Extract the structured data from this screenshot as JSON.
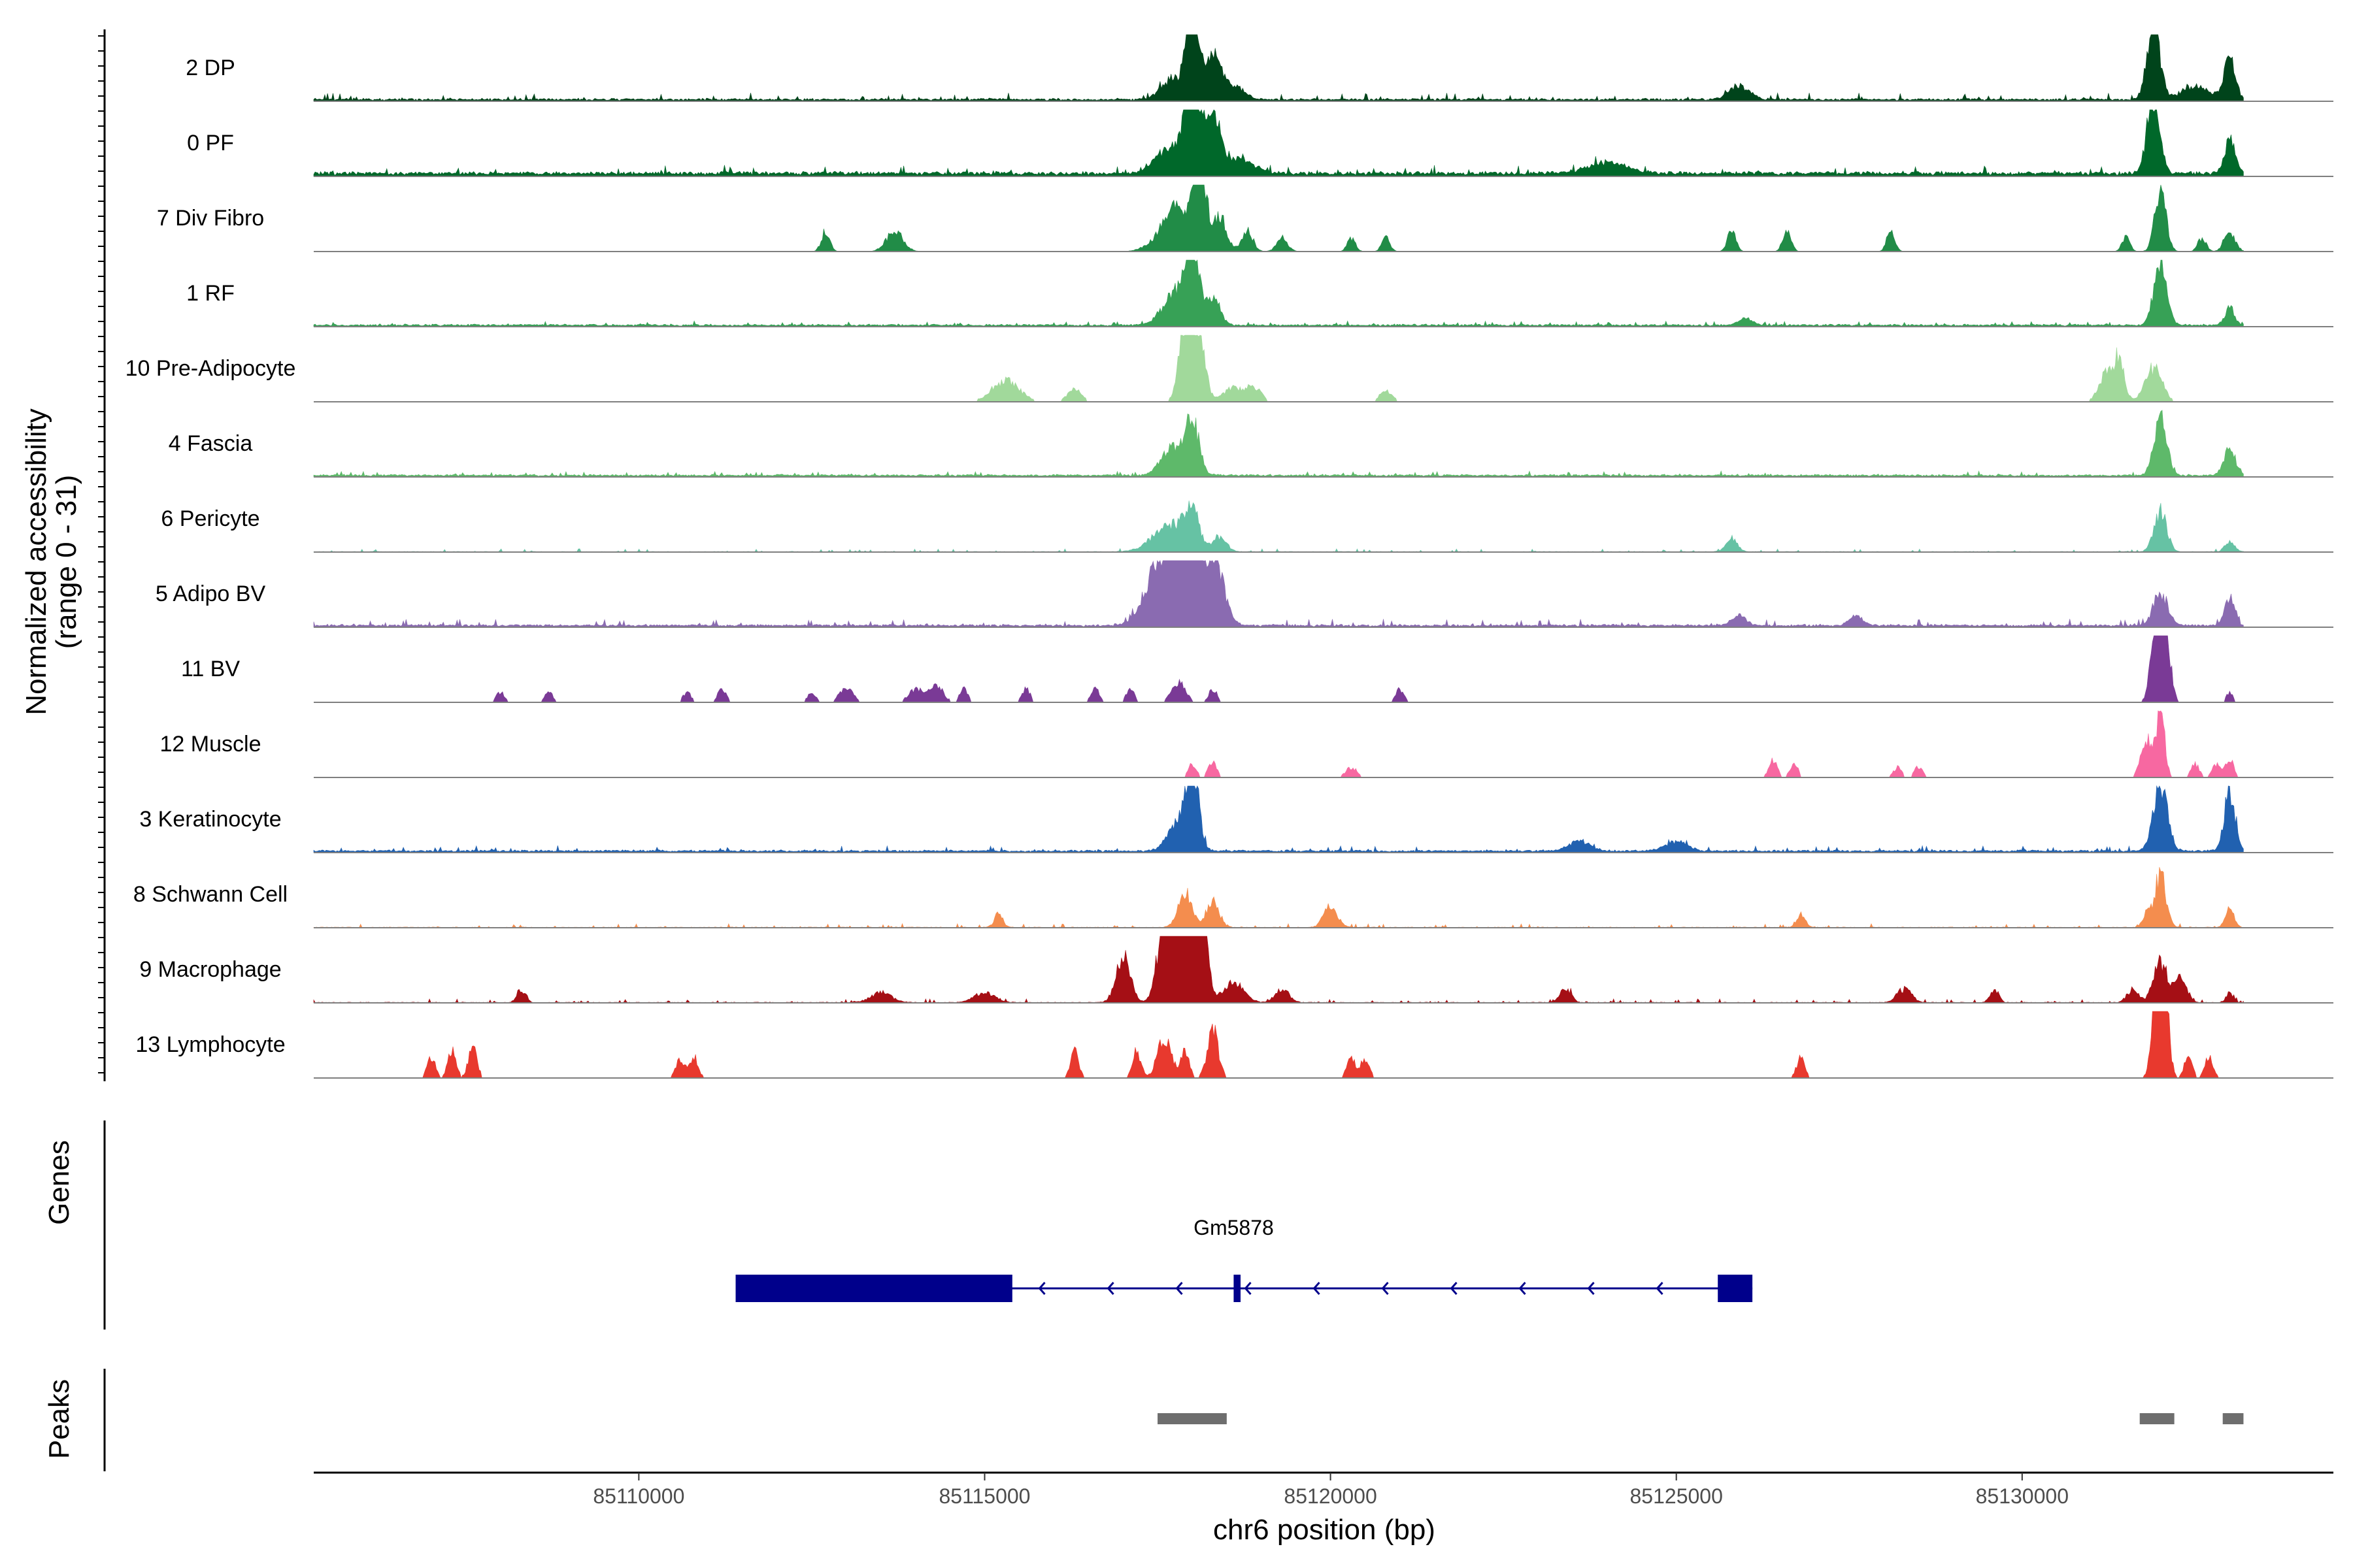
{
  "chart_data": {
    "type": "area",
    "title": "",
    "chromosome": "chr6",
    "xlabel": "chr6 position (bp)",
    "xlim": [
      85105300,
      85134500
    ],
    "x_ticks": [
      85110000,
      85115000,
      85120000,
      85125000,
      85130000
    ],
    "x_tick_labels": [
      "85110000",
      "85115000",
      "85120000",
      "85125000",
      "85130000"
    ],
    "ylabel_line1": "Normalized accessibility",
    "ylabel_line2": "(range 0 - 31)",
    "ylim": [
      0,
      31
    ],
    "signal_range": [
      85105300,
      85133200
    ],
    "coverage_tracks": [
      {
        "name": "2 DP",
        "color": "#00441b",
        "baseline": 0.2,
        "noise": 0.5,
        "sparse": false,
        "peaks": [
          [
            85117700,
            150,
            3
          ],
          [
            85118000,
            90,
            13
          ],
          [
            85118300,
            110,
            7
          ],
          [
            85118600,
            150,
            2
          ],
          [
            85125900,
            150,
            2
          ],
          [
            85131900,
            90,
            12
          ],
          [
            85132500,
            200,
            2
          ],
          [
            85133000,
            80,
            6
          ]
        ]
      },
      {
        "name": "0 PF",
        "color": "#00682a",
        "baseline": 0.4,
        "noise": 0.6,
        "sparse": false,
        "peaks": [
          [
            85117700,
            200,
            4
          ],
          [
            85118000,
            100,
            14
          ],
          [
            85118300,
            110,
            9
          ],
          [
            85118700,
            200,
            2
          ],
          [
            85124000,
            300,
            1.5
          ],
          [
            85131900,
            90,
            12
          ],
          [
            85133000,
            80,
            5
          ]
        ]
      },
      {
        "name": "7 Div Fibro",
        "color": "#218c47",
        "baseline": 0,
        "noise": 0,
        "sparse": false,
        "peaks": [
          [
            85112700,
            60,
            3
          ],
          [
            85113700,
            120,
            3
          ],
          [
            85117600,
            200,
            2.5
          ],
          [
            85118100,
            90,
            16
          ],
          [
            85117800,
            150,
            5
          ],
          [
            85118400,
            100,
            5
          ],
          [
            85118800,
            80,
            3
          ],
          [
            85119300,
            80,
            2
          ],
          [
            85120300,
            60,
            2
          ],
          [
            85120800,
            60,
            2
          ],
          [
            85125800,
            60,
            3
          ],
          [
            85126600,
            60,
            3
          ],
          [
            85128100,
            60,
            3
          ],
          [
            85131500,
            60,
            2
          ],
          [
            85132000,
            80,
            9
          ],
          [
            85132600,
            60,
            2
          ],
          [
            85133000,
            80,
            3
          ]
        ]
      },
      {
        "name": "1 RF",
        "color": "#37a156",
        "baseline": 0.2,
        "noise": 0.3,
        "sparse": false,
        "peaks": [
          [
            85117800,
            200,
            5
          ],
          [
            85118000,
            90,
            10
          ],
          [
            85118300,
            100,
            4
          ],
          [
            85126000,
            100,
            1
          ],
          [
            85132000,
            90,
            10
          ],
          [
            85133000,
            70,
            2.5
          ]
        ]
      },
      {
        "name": "10 Pre-Adipocyte",
        "color": "#a1d99b",
        "baseline": 0,
        "noise": 0,
        "sparse": true,
        "peaks": [
          [
            85115300,
            200,
            3
          ],
          [
            85116300,
            100,
            2
          ],
          [
            85117900,
            90,
            12
          ],
          [
            85118100,
            90,
            9
          ],
          [
            85118600,
            150,
            2
          ],
          [
            85118900,
            100,
            2
          ],
          [
            85120800,
            100,
            1.5
          ],
          [
            85131200,
            100,
            4
          ],
          [
            85131400,
            80,
            6
          ],
          [
            85131900,
            120,
            5
          ]
        ]
      },
      {
        "name": "4 Fascia",
        "color": "#5eb96a",
        "baseline": 0.2,
        "noise": 0.35,
        "sparse": false,
        "peaks": [
          [
            85117700,
            150,
            4
          ],
          [
            85118000,
            100,
            8
          ],
          [
            85132000,
            90,
            9
          ],
          [
            85133000,
            80,
            4
          ]
        ]
      },
      {
        "name": "6 Pericyte",
        "color": "#66c2a4",
        "baseline": 0,
        "noise": 0.25,
        "sparse": false,
        "peaks": [
          [
            85117700,
            250,
            4
          ],
          [
            85118000,
            100,
            5
          ],
          [
            85118400,
            100,
            2
          ],
          [
            85125800,
            80,
            2
          ],
          [
            85132000,
            90,
            6
          ],
          [
            85133000,
            70,
            1.5
          ]
        ]
      },
      {
        "name": "5 Adipo BV",
        "color": "#8a6bb1",
        "baseline": 0.2,
        "noise": 0.5,
        "sparse": false,
        "peaks": [
          [
            85117500,
            200,
            8
          ],
          [
            85117800,
            150,
            12
          ],
          [
            85118000,
            100,
            13
          ],
          [
            85118300,
            150,
            10
          ],
          [
            85132000,
            100,
            5
          ],
          [
            85133000,
            70,
            4
          ],
          [
            85127600,
            100,
            1.5
          ],
          [
            85125900,
            100,
            1.5
          ]
        ]
      },
      {
        "name": "11 BV",
        "color": "#7a3a96",
        "baseline": 0,
        "noise": 0,
        "sparse": true,
        "peaks": [
          [
            85108000,
            60,
            1.5
          ],
          [
            85108700,
            60,
            1.5
          ],
          [
            85110700,
            60,
            1.5
          ],
          [
            85111200,
            60,
            2
          ],
          [
            85112500,
            60,
            1.5
          ],
          [
            85113000,
            100,
            2
          ],
          [
            85114000,
            100,
            2
          ],
          [
            85114300,
            100,
            2.5
          ],
          [
            85114700,
            60,
            2
          ],
          [
            85115600,
            60,
            2
          ],
          [
            85116600,
            60,
            2
          ],
          [
            85117100,
            60,
            2
          ],
          [
            85117800,
            100,
            3
          ],
          [
            85118300,
            60,
            2
          ],
          [
            85121000,
            60,
            2
          ],
          [
            85132000,
            90,
            24
          ],
          [
            85133000,
            50,
            1.5
          ]
        ]
      },
      {
        "name": "12 Muscle",
        "color": "#f768a1",
        "baseline": 0,
        "noise": 0,
        "sparse": true,
        "peaks": [
          [
            85118000,
            60,
            2
          ],
          [
            85118300,
            60,
            2.5
          ],
          [
            85120300,
            80,
            1.5
          ],
          [
            85126400,
            60,
            2.5
          ],
          [
            85126700,
            60,
            2
          ],
          [
            85128200,
            60,
            1.5
          ],
          [
            85128500,
            60,
            1.5
          ],
          [
            85131800,
            80,
            6
          ],
          [
            85132000,
            60,
            10
          ],
          [
            85132500,
            60,
            2
          ],
          [
            85132800,
            60,
            2
          ],
          [
            85133000,
            60,
            3
          ]
        ]
      },
      {
        "name": "3 Keratinocyte",
        "color": "#2161b0",
        "baseline": 0.2,
        "noise": 0.4,
        "sparse": false,
        "peaks": [
          [
            85117800,
            150,
            4
          ],
          [
            85118000,
            90,
            12
          ],
          [
            85123600,
            150,
            1.5
          ],
          [
            85125000,
            150,
            1.5
          ],
          [
            85132000,
            100,
            10
          ],
          [
            85133000,
            80,
            9
          ]
        ]
      },
      {
        "name": "8 Schwann Cell",
        "color": "#f48d4e",
        "baseline": 0,
        "noise": 0.3,
        "sparse": false,
        "peaks": [
          [
            85115200,
            60,
            2
          ],
          [
            85117900,
            100,
            5
          ],
          [
            85118300,
            90,
            4
          ],
          [
            85120000,
            100,
            3
          ],
          [
            85126800,
            60,
            2
          ],
          [
            85131800,
            60,
            2
          ],
          [
            85132000,
            80,
            8
          ],
          [
            85133000,
            60,
            3
          ]
        ]
      },
      {
        "name": "9 Macrophage",
        "color": "#a50f15",
        "baseline": 0,
        "noise": 0.3,
        "sparse": false,
        "peaks": [
          [
            85108300,
            60,
            2
          ],
          [
            85113500,
            150,
            1.5
          ],
          [
            85115000,
            150,
            1.5
          ],
          [
            85117000,
            100,
            7
          ],
          [
            85117600,
            100,
            12
          ],
          [
            85117900,
            120,
            18
          ],
          [
            85118100,
            90,
            22
          ],
          [
            85118600,
            150,
            3
          ],
          [
            85119300,
            100,
            2
          ],
          [
            85123400,
            80,
            2
          ],
          [
            85128300,
            100,
            2
          ],
          [
            85129600,
            60,
            2
          ],
          [
            85131600,
            80,
            2
          ],
          [
            85132000,
            100,
            6
          ],
          [
            85132300,
            80,
            4
          ],
          [
            85133000,
            50,
            1.5
          ]
        ]
      },
      {
        "name": "13 Lymphocyte",
        "color": "#e8392e",
        "baseline": 0,
        "noise": 0,
        "sparse": true,
        "peaks": [
          [
            85107000,
            60,
            3
          ],
          [
            85107300,
            60,
            4
          ],
          [
            85107600,
            60,
            5
          ],
          [
            85110600,
            60,
            3
          ],
          [
            85110800,
            60,
            3
          ],
          [
            85116300,
            60,
            4
          ],
          [
            85117200,
            60,
            4
          ],
          [
            85117600,
            100,
            6
          ],
          [
            85117900,
            60,
            4
          ],
          [
            85118300,
            80,
            7
          ],
          [
            85120300,
            60,
            3
          ],
          [
            85120500,
            60,
            3
          ],
          [
            85126800,
            60,
            3
          ],
          [
            85132000,
            80,
            26
          ],
          [
            85132400,
            60,
            3
          ],
          [
            85132700,
            60,
            3
          ]
        ]
      }
    ],
    "genes_title": "Genes",
    "genes": [
      {
        "name": "Gm5878",
        "strand": "-",
        "start": 85111400,
        "end": 85126100,
        "exons": [
          [
            85111400,
            85115400
          ],
          [
            85118600,
            85118700
          ],
          [
            85125600,
            85126100
          ]
        ]
      }
    ],
    "peaks_title": "Peaks",
    "peak_regions": [
      [
        85117500,
        85118500
      ],
      [
        85131700,
        85132200
      ],
      [
        85132900,
        85133200
      ]
    ],
    "peak_color": "#6e6e6e",
    "gene_color": "#00008b"
  }
}
